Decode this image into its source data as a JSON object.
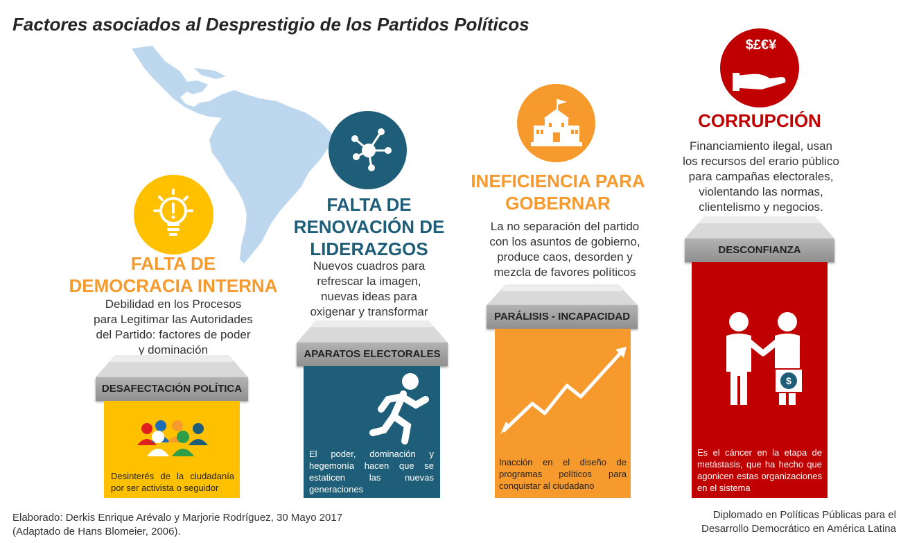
{
  "title": "Factores asociados al Desprestigio de los Partidos Políticos",
  "colors": {
    "yellow": "#FFC000",
    "teal": "#1F5E78",
    "orange": "#F79A2E",
    "red": "#C00000",
    "map": "#BDD7EE"
  },
  "columns": [
    {
      "id": "democracia",
      "icon": "lightbulb-icon",
      "title_lines": [
        "FALTA DE",
        "DEMOCRACIA INTERNA"
      ],
      "desc_lines": [
        "Debilidad en los Procesos",
        "para Legitimar las Autoridades",
        "del Partido: factores de poder",
        "y dominación"
      ],
      "band": "DESAFECTACIÓN POLÍTICA",
      "pillar_icon": "people-group-icon",
      "pillar_text": "Desinterés de la ciudadanía por ser activista o seguidor"
    },
    {
      "id": "renovacion",
      "icon": "network-icon",
      "title_lines": [
        "FALTA DE",
        "RENOVACIÓN DE",
        "LIDERAZGOS"
      ],
      "desc_lines": [
        "Nuevos cuadros para",
        "refrescar la imagen,",
        "nuevas ideas para",
        "oxigenar y transformar"
      ],
      "band": "APARATOS ELECTORALES",
      "pillar_icon": "running-person-icon",
      "pillar_text": "El poder, dominación y hegemonía hacen que se estaticen las nuevas generaciones"
    },
    {
      "id": "ineficiencia",
      "icon": "government-building-icon",
      "title_lines": [
        "INEFICIENCIA PARA",
        "GOBERNAR"
      ],
      "desc_lines": [
        "La no separación del partido",
        "con los asuntos de gobierno,",
        "produce caos, desorden y",
        "mezcla de favores políticos"
      ],
      "band": "PARÁLISIS - INCAPACIDAD",
      "pillar_icon": "zigzag-arrow-icon",
      "pillar_text": "Inacción en el diseño de programas políticos para conquistar al ciudadano"
    },
    {
      "id": "corrupcion",
      "icon": "money-hand-icon",
      "icon_symbols": "$£€¥",
      "title_lines": [
        "CORRUPCIÓN"
      ],
      "desc_lines": [
        "Financiamiento ilegal, usan",
        "los recursos del erario público",
        "para campañas electorales,",
        "violentando las normas,",
        "clientelismo y negocios."
      ],
      "band": "DESCONFIANZA",
      "pillar_icon": "handshake-bribe-icon",
      "pillar_text": "Es el cáncer en la etapa de metástasis, que ha hecho que agonicen estas organizaciones en el sistema"
    }
  ],
  "footer": {
    "left_line1": "Elaborado: Derkis Enrique Arévalo y Marjorie Rodríguez, 30 Mayo 2017",
    "left_line2": "(Adaptado de Hans Blomeier, 2006).",
    "right_line1": "Diplomado en Políticas Públicas para el",
    "right_line2": "Desarrollo Democrático en América Latina"
  }
}
